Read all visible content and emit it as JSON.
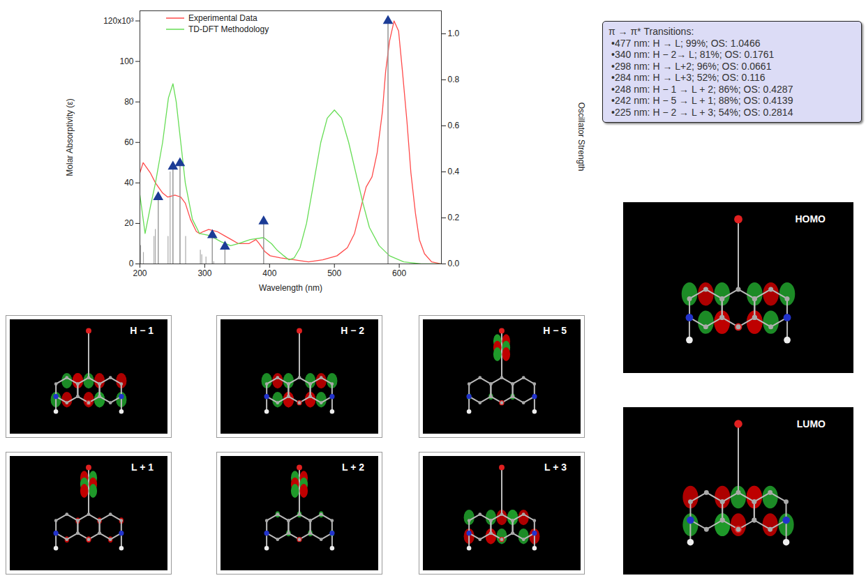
{
  "chart_data": {
    "type": "line",
    "x_label": "Wavelength (nm)",
    "y_label": "Molar Absorptivity (ε)",
    "y2_label": "Oscillator Strength",
    "xlim": [
      200,
      665
    ],
    "xticks": [
      200,
      300,
      400,
      500,
      600
    ],
    "ylim": [
      0,
      125
    ],
    "yticks": [
      0,
      20,
      40,
      60,
      80,
      100,
      {
        "value": 120,
        "label": "120x10³"
      }
    ],
    "y2lim": [
      0,
      1.1
    ],
    "y2ticks": [
      {
        "value": 0,
        "label": "0.0"
      },
      0.2,
      0.4,
      0.6,
      0.8,
      {
        "value": 1,
        "label": "1.0"
      }
    ],
    "grid": false,
    "legend": "upper left",
    "series": [
      {
        "name": "Experimental Data",
        "color": "#ff4a4a",
        "x": [
          200,
          205,
          216,
          224,
          235,
          243,
          254,
          263,
          270,
          278,
          287,
          292,
          298,
          306,
          319,
          330,
          341,
          352,
          368,
          379,
          384,
          393,
          401,
          417,
          438,
          460,
          482,
          504,
          520,
          531,
          541,
          549,
          558,
          566,
          574,
          579,
          585,
          592,
          599,
          605,
          612,
          618,
          625,
          631,
          639,
          650,
          665
        ],
        "values": [
          45,
          50,
          45,
          40,
          35,
          33,
          34,
          33,
          30,
          22,
          16,
          15,
          16,
          17,
          16,
          14,
          12,
          10,
          10,
          12,
          10,
          6,
          4,
          3,
          2,
          1,
          2,
          4,
          8,
          15,
          28,
          38,
          43,
          55,
          75,
          95,
          110,
          120,
          115,
          95,
          70,
          45,
          25,
          12,
          5,
          1,
          0
        ]
      },
      {
        "name": "TD-DFT Methodology",
        "color": "#66dd55",
        "x": [
          200,
          208,
          216,
          224,
          235,
          244,
          251,
          256,
          263,
          270,
          281,
          292,
          308,
          325,
          340,
          352,
          370,
          391,
          403,
          411,
          422,
          430,
          438,
          447,
          457,
          468,
          479,
          489,
          500,
          511,
          522,
          533,
          544,
          554,
          569,
          585,
          607,
          634,
          665
        ],
        "values": [
          34,
          15,
          28,
          40,
          60,
          82,
          89,
          80,
          60,
          40,
          22,
          15,
          14,
          11,
          9,
          10,
          12,
          13,
          10,
          7,
          4,
          2,
          3,
          8,
          20,
          40,
          60,
          72,
          76,
          72,
          60,
          45,
          30,
          18,
          9,
          4,
          1,
          0,
          0
        ]
      }
    ],
    "sticks": {
      "axis": "y2",
      "color": "#aaaaaa",
      "x": [
        201.1,
        205.4,
        221.7,
        223.8,
        228.2,
        243.4,
        246.6,
        250.9,
        261.8,
        270.5,
        293.2,
        295.4,
        301.9,
        311.7,
        313.8,
        331.2,
        390.8,
        582.7
      ],
      "values": [
        0.08,
        0.05,
        0.12,
        0.15,
        0.2814,
        0.12,
        0.4,
        0.4139,
        0.4287,
        0.12,
        0.06,
        0.04,
        0.03,
        0.116,
        0.01,
        0.0661,
        0.1761,
        1.0466
      ]
    },
    "markers": {
      "axis": "y2",
      "color": "#1c3c96",
      "marker": "triangle",
      "x": [
        228.2,
        250.9,
        261.8,
        311.7,
        331.2,
        390.8,
        582.7
      ],
      "values": [
        0.2814,
        0.4139,
        0.4287,
        0.116,
        0.0661,
        0.1761,
        1.0466
      ]
    }
  },
  "transitions_box": {
    "title": "π → π* Transitions:",
    "items": [
      "•477 nm: H → L; 99%; OS: 1.0466",
      "•340 nm: H − 2→ L; 81%; OS: 0.1761",
      "•298 nm: H → L+2; 96%; OS: 0.0661",
      "•284 nm: H → L+3; 52%; OS: 0.116",
      "•248 nm: H − 1 → L + 2; 86%; OS: 0.4287",
      "•242 nm: H − 5 → L + 1; 88%; OS: 0.4139",
      "•225 nm: H − 2 → L + 3; 54%; OS: 0.2814"
    ]
  },
  "orbitals": {
    "small": [
      "H − 1",
      "H − 2",
      "H − 5",
      "L + 1",
      "L + 2",
      "L + 3"
    ],
    "large": [
      "HOMO",
      "LUMO"
    ]
  }
}
